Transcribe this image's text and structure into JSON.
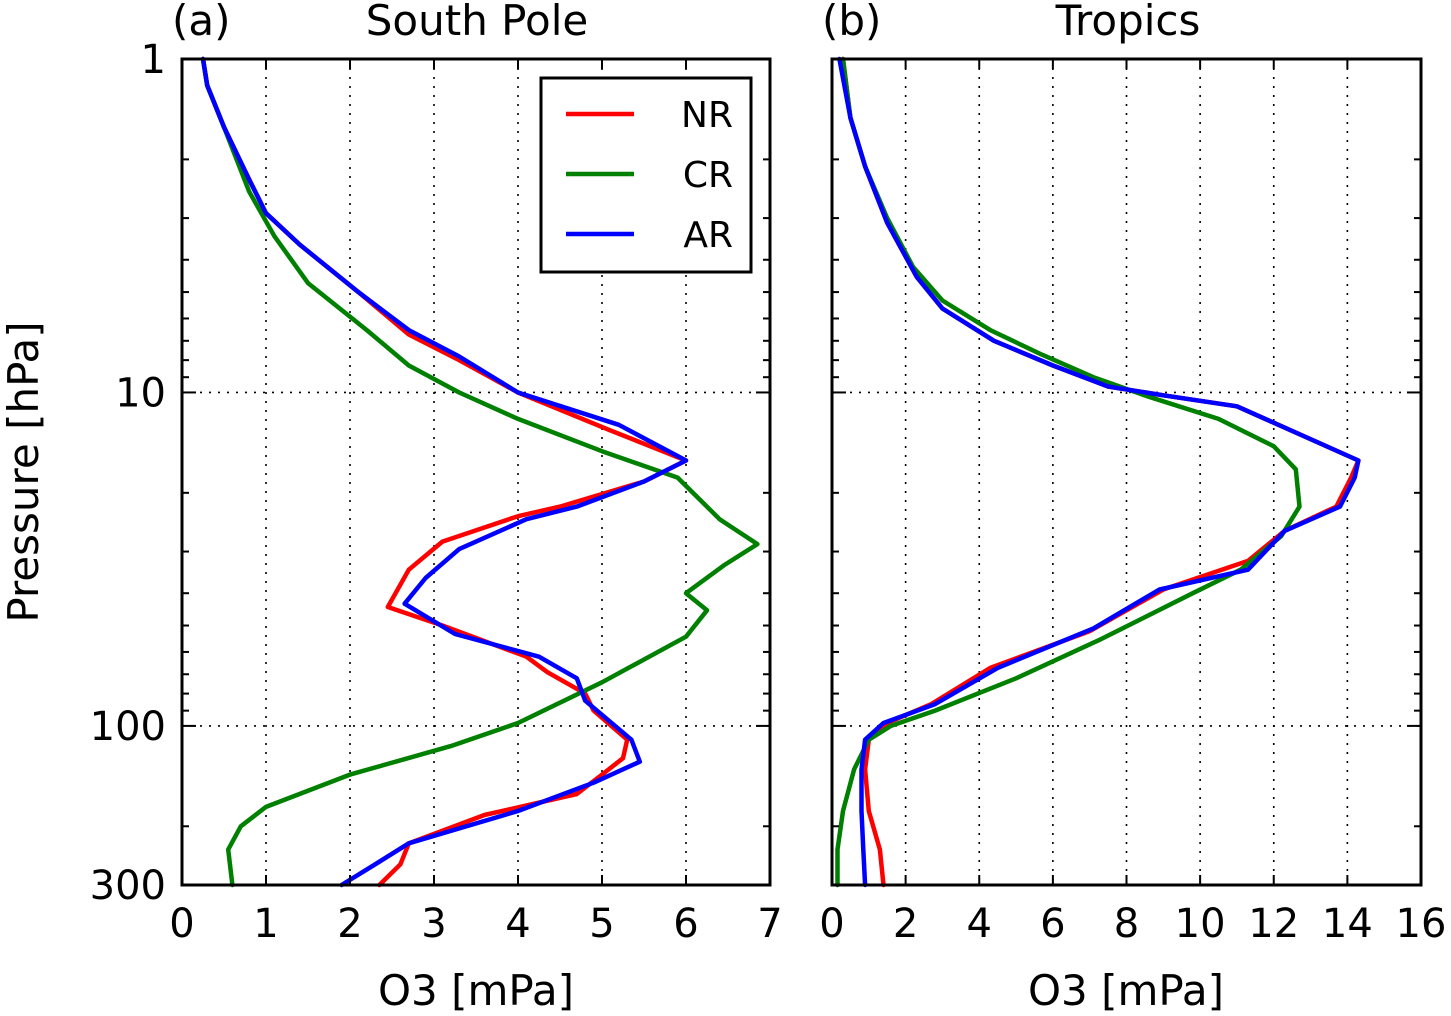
{
  "chart_data": [
    {
      "type": "line",
      "panel_label": "(a)",
      "title": "South Pole",
      "xlabel": "O3 [mPa]",
      "ylabel": "Pressure [hPa]",
      "xlim": [
        0,
        7
      ],
      "ylim": [
        300,
        1
      ],
      "yscale": "log",
      "y_inverted": true,
      "xticks": [
        0,
        1,
        2,
        3,
        4,
        5,
        6,
        7
      ],
      "xtick_labels": [
        "0",
        "1",
        "2",
        "3",
        "4",
        "5",
        "6",
        "7"
      ],
      "yticks": [
        1,
        10,
        100,
        300
      ],
      "ytick_labels": [
        "1",
        "10",
        "100",
        "300"
      ],
      "grid": true,
      "legend": {
        "placement": "upper right",
        "entries": [
          "NR",
          "CR",
          "AR"
        ]
      },
      "series": [
        {
          "name": "NR",
          "color": "#ff0000",
          "x": [
            0.25,
            0.3,
            0.5,
            0.8,
            1.0,
            1.4,
            2.1,
            2.7,
            3.3,
            4.0,
            5.1,
            6.0,
            5.5,
            4.5,
            4.0,
            3.1,
            2.7,
            2.45,
            3.1,
            4.1,
            4.35,
            4.8,
            4.9,
            5.3,
            5.25,
            5.0,
            4.7,
            3.6,
            2.7,
            2.6,
            2.35
          ],
          "y": [
            1.0,
            1.2,
            1.6,
            2.3,
            2.9,
            3.6,
            5.0,
            6.7,
            8.0,
            10.0,
            13.0,
            16.0,
            18.5,
            22.0,
            23.5,
            28.0,
            34.0,
            44.0,
            50.0,
            62.0,
            69.0,
            80.0,
            90.0,
            110.0,
            125.0,
            140.0,
            160.0,
            185.0,
            225.0,
            260.0,
            300.0
          ]
        },
        {
          "name": "CR",
          "color": "#008000",
          "x": [
            0.25,
            0.3,
            0.5,
            0.8,
            1.1,
            1.5,
            2.2,
            2.7,
            3.3,
            4.0,
            5.0,
            5.9,
            6.4,
            6.85,
            6.45,
            6.0,
            6.25,
            6.0,
            5.0,
            4.0,
            3.2,
            2.0,
            1.0,
            0.7,
            0.55,
            0.6
          ],
          "y": [
            1.0,
            1.2,
            1.6,
            2.5,
            3.4,
            4.7,
            6.5,
            8.3,
            10.0,
            12.0,
            15.0,
            18.0,
            24.0,
            28.5,
            33.0,
            40.0,
            45.0,
            54.0,
            74.0,
            98.0,
            115.0,
            140.0,
            175.0,
            200.0,
            235.0,
            300.0
          ]
        },
        {
          "name": "AR",
          "color": "#0000ff",
          "x": [
            0.25,
            0.3,
            0.5,
            0.8,
            1.0,
            1.4,
            2.1,
            2.7,
            3.3,
            4.0,
            5.2,
            6.0,
            5.5,
            4.7,
            4.1,
            3.3,
            2.9,
            2.65,
            3.25,
            4.25,
            4.7,
            4.8,
            5.35,
            5.45,
            4.9,
            4.0,
            2.7,
            2.3,
            1.9
          ],
          "y": [
            1.0,
            1.2,
            1.6,
            2.3,
            2.9,
            3.6,
            5.0,
            6.5,
            7.8,
            10.0,
            12.5,
            16.0,
            18.5,
            22.0,
            24.0,
            29.5,
            36.0,
            43.0,
            53.0,
            62.0,
            72.0,
            84.0,
            110.0,
            128.0,
            148.0,
            180.0,
            225.0,
            260.0,
            300.0
          ]
        }
      ]
    },
    {
      "type": "line",
      "panel_label": "(b)",
      "title": "Tropics",
      "xlabel": "O3 [mPa]",
      "ylabel": "",
      "xlim": [
        0,
        16
      ],
      "ylim": [
        300,
        1
      ],
      "yscale": "log",
      "y_inverted": true,
      "xticks": [
        0,
        2,
        4,
        6,
        8,
        10,
        12,
        14,
        16
      ],
      "xtick_labels": [
        "0",
        "2",
        "4",
        "6",
        "8",
        "10",
        "12",
        "14",
        "16"
      ],
      "grid": true,
      "series": [
        {
          "name": "NR",
          "color": "#ff0000",
          "x": [
            0.3,
            0.5,
            0.9,
            1.5,
            2.3,
            3.0,
            4.4,
            6.0,
            7.5,
            9.0,
            11.0,
            14.3,
            14.1,
            13.7,
            12.3,
            11.3,
            9.0,
            7.0,
            4.3,
            2.7,
            1.5,
            1.0,
            0.9,
            1.0,
            1.3,
            1.4
          ],
          "y": [
            1.0,
            1.5,
            2.1,
            3.1,
            4.5,
            5.6,
            7.0,
            8.3,
            9.6,
            10.2,
            11.0,
            16.0,
            18.0,
            22.0,
            26.0,
            32.0,
            39.0,
            52.0,
            67.0,
            86.0,
            98.0,
            110.0,
            135.0,
            180.0,
            235.0,
            300.0
          ]
        },
        {
          "name": "CR",
          "color": "#008000",
          "x": [
            0.3,
            0.5,
            0.9,
            1.5,
            2.2,
            3.0,
            4.3,
            5.7,
            7.1,
            8.6,
            10.5,
            12.0,
            12.6,
            12.7,
            12.2,
            11.1,
            9.8,
            7.3,
            5.0,
            2.8,
            1.6,
            1.0,
            0.6,
            0.3,
            0.15,
            0.15
          ],
          "y": [
            1.0,
            1.5,
            2.1,
            3.0,
            4.2,
            5.3,
            6.5,
            7.7,
            9.0,
            10.3,
            12.0,
            14.5,
            17.0,
            22.0,
            27.0,
            34.0,
            40.0,
            55.0,
            72.0,
            90.0,
            100.0,
            110.0,
            135.0,
            180.0,
            235.0,
            300.0
          ]
        },
        {
          "name": "AR",
          "color": "#0000ff",
          "x": [
            0.2,
            0.5,
            0.9,
            1.5,
            2.3,
            3.0,
            4.4,
            6.0,
            7.5,
            9.0,
            11.0,
            14.3,
            14.2,
            13.8,
            12.3,
            11.3,
            8.9,
            7.1,
            4.5,
            2.8,
            1.4,
            0.9,
            0.8,
            0.8,
            0.85,
            0.9
          ],
          "y": [
            1.0,
            1.5,
            2.1,
            3.1,
            4.5,
            5.6,
            7.0,
            8.3,
            9.6,
            10.2,
            11.0,
            16.0,
            18.0,
            22.0,
            26.0,
            34.0,
            39.0,
            51.0,
            67.0,
            86.0,
            98.0,
            110.0,
            135.0,
            180.0,
            235.0,
            300.0
          ]
        }
      ]
    }
  ]
}
